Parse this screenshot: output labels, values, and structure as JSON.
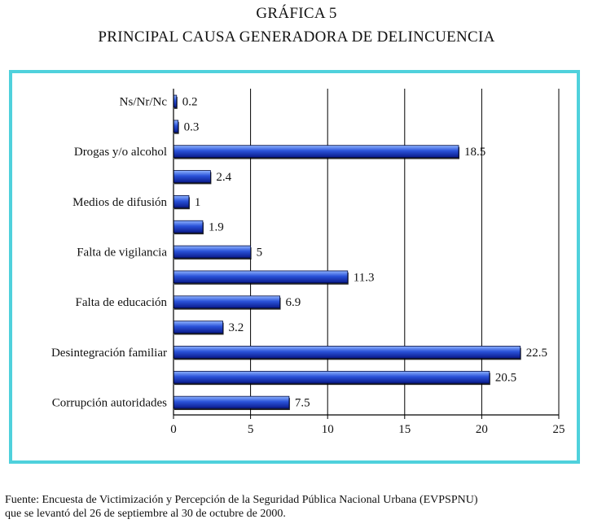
{
  "title": {
    "line1": "GRÁFICA 5",
    "line2": "PRINCIPAL CAUSA GENERADORA DE DELINCUENCIA"
  },
  "source": {
    "line1": "Fuente: Encuesta de Victimización y Percepción de la Seguridad Pública Nacional Urbana (EVPSPNU)",
    "line2": "que se levantó del 26 de septiembre al 30 de octubre de 2000."
  },
  "colors": {
    "frame": "#4fd1dc",
    "bar_dark": "#0a1a8a",
    "bar_light": "#8fb4ff",
    "grid": "#000000"
  },
  "chart_data": {
    "type": "bar",
    "orientation": "horizontal",
    "title": "PRINCIPAL CAUSA GENERADORA DE DELINCUENCIA",
    "xlabel": "",
    "ylabel": "",
    "xlim": [
      0,
      25
    ],
    "xticks": [
      0,
      5,
      10,
      15,
      20,
      25
    ],
    "grid": "vertical",
    "categories": [
      "Ns/Nr/Nc",
      "",
      "Drogas y/o alcohol",
      "",
      "Medios de difusión",
      "",
      "Falta de vigilancia",
      "",
      "Falta de educación",
      "",
      "Desintegración familiar",
      "",
      "Corrupción autoridades"
    ],
    "values": [
      0.2,
      0.3,
      18.5,
      2.4,
      1,
      1.9,
      5,
      11.3,
      6.9,
      3.2,
      22.5,
      20.5,
      7.5
    ],
    "value_labels": [
      "0.2",
      "0.3",
      "18.5",
      "2.4",
      "1",
      "1.9",
      "5",
      "11.3",
      "6.9",
      "3.2",
      "22.5",
      "20.5",
      "7.5"
    ]
  }
}
